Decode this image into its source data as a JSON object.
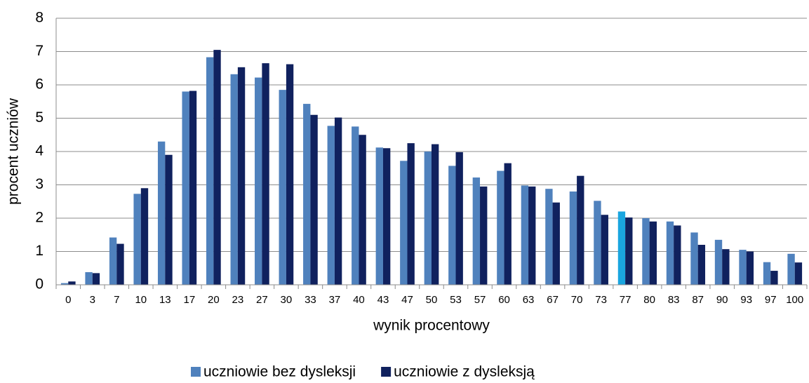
{
  "chart_data": {
    "type": "bar",
    "x_label": "wynik procentowy",
    "y_label": "procent uczniów",
    "categories": [
      "0",
      "3",
      "7",
      "10",
      "13",
      "17",
      "20",
      "23",
      "27",
      "30",
      "33",
      "37",
      "40",
      "43",
      "47",
      "50",
      "53",
      "57",
      "60",
      "63",
      "67",
      "70",
      "73",
      "77",
      "80",
      "83",
      "87",
      "90",
      "93",
      "97",
      "100"
    ],
    "series": [
      {
        "name": "uczniowie bez dysleksji",
        "color": "#4f81bd",
        "highlight": {
          "category": "77",
          "color": "#1aa6e0"
        },
        "values": [
          0.05,
          0.38,
          1.42,
          2.73,
          4.3,
          5.8,
          6.83,
          6.32,
          6.22,
          5.85,
          5.43,
          4.77,
          4.75,
          4.12,
          3.72,
          4.0,
          3.57,
          3.22,
          3.42,
          2.98,
          2.88,
          2.8,
          2.52,
          2.2,
          2.0,
          1.9,
          1.57,
          1.35,
          1.05,
          0.68,
          0.93
        ]
      },
      {
        "name": "uczniowie z dysleksją",
        "color": "#10215e",
        "values": [
          0.1,
          0.35,
          1.23,
          2.9,
          3.9,
          5.82,
          7.05,
          6.53,
          6.65,
          6.62,
          5.1,
          5.02,
          4.5,
          4.1,
          4.25,
          4.22,
          3.98,
          2.95,
          3.65,
          2.95,
          2.47,
          3.27,
          2.1,
          2.02,
          1.9,
          1.78,
          1.2,
          1.07,
          1.0,
          0.42,
          0.67
        ]
      }
    ],
    "ylim": [
      0,
      8
    ],
    "yticks": [
      0,
      1,
      2,
      3,
      4,
      5,
      6,
      7,
      8
    ],
    "grid": true,
    "legend": "bottom"
  }
}
